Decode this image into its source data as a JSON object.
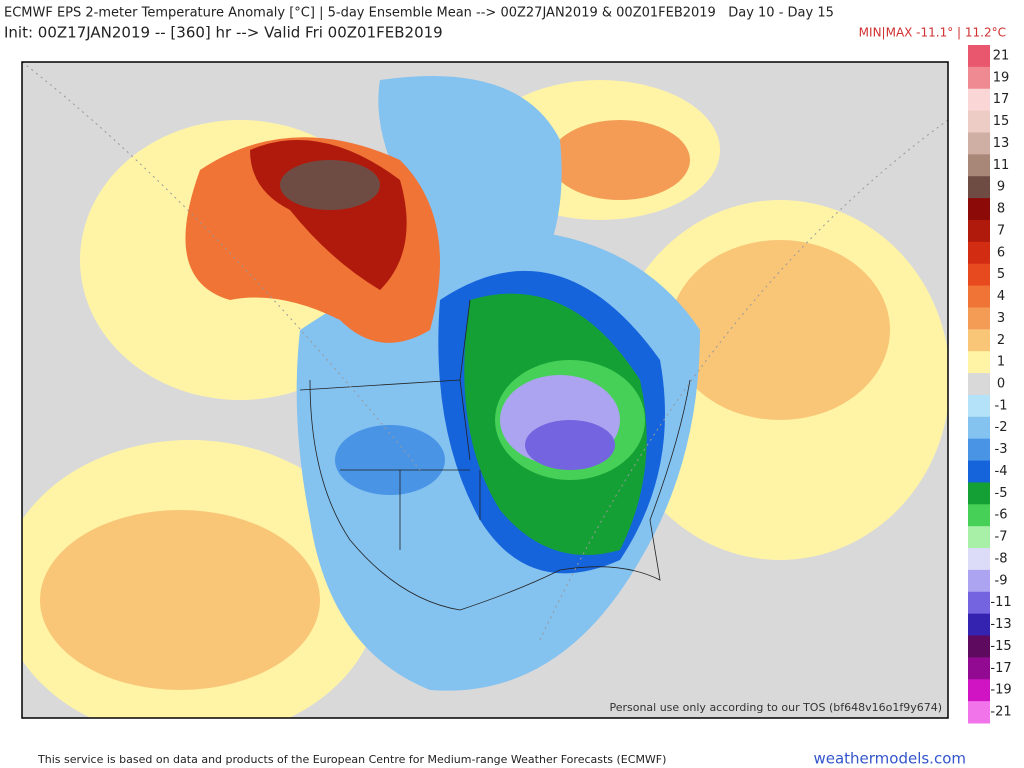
{
  "header": {
    "title": "ECMWF EPS 2-meter Temperature Anomaly [°C] | 5-day Ensemble Mean --> 00Z27JAN2019 & 00Z01FEB2019   Day 10 - Day 15",
    "subtitle": "Init: 00Z17JAN2019 -- [360] hr --> Valid Fri 00Z01FEB2019",
    "minmax": "MIN|MAX -11.1° | 11.2°C"
  },
  "legend": {
    "items": [
      {
        "label": "21",
        "color": "#e9576e"
      },
      {
        "label": "19",
        "color": "#f08a92"
      },
      {
        "label": "17",
        "color": "#fbd6d6"
      },
      {
        "label": "15",
        "color": "#ecccc4"
      },
      {
        "label": "13",
        "color": "#cfaea4"
      },
      {
        "label": "11",
        "color": "#a88678"
      },
      {
        "label": "9",
        "color": "#6e4c44"
      },
      {
        "label": "8",
        "color": "#8c0a08"
      },
      {
        "label": "7",
        "color": "#b01a0c"
      },
      {
        "label": "6",
        "color": "#d22c12"
      },
      {
        "label": "5",
        "color": "#e84a20"
      },
      {
        "label": "4",
        "color": "#f07436"
      },
      {
        "label": "3",
        "color": "#f49c56"
      },
      {
        "label": "2",
        "color": "#f9c678"
      },
      {
        "label": "1",
        "color": "#fff4a6"
      },
      {
        "label": "0",
        "color": "#d9d9d9"
      },
      {
        "label": "-1",
        "color": "#b4e2f8"
      },
      {
        "label": "-2",
        "color": "#84c2f0"
      },
      {
        "label": "-3",
        "color": "#4a94e6"
      },
      {
        "label": "-4",
        "color": "#1664dc"
      },
      {
        "label": "-5",
        "color": "#14a034"
      },
      {
        "label": "-6",
        "color": "#46d058"
      },
      {
        "label": "-7",
        "color": "#a8f0a8"
      },
      {
        "label": "-8",
        "color": "#dcdcf8"
      },
      {
        "label": "-9",
        "color": "#aca4f0"
      },
      {
        "label": "-11",
        "color": "#7464e0"
      },
      {
        "label": "-13",
        "color": "#3422b0"
      },
      {
        "label": "-15",
        "color": "#5e0a5e"
      },
      {
        "label": "-17",
        "color": "#920a92"
      },
      {
        "label": "-19",
        "color": "#d014c4"
      },
      {
        "label": "-21",
        "color": "#f274ea"
      }
    ]
  },
  "watermark": "Personal use only according to our TOS (bf648v16o1f9y674)",
  "footer": {
    "credit": "This service is based on data and products of the European Centre for Medium-range Weather Forecasts (ECMWF)",
    "site": "weathermodels.com"
  }
}
